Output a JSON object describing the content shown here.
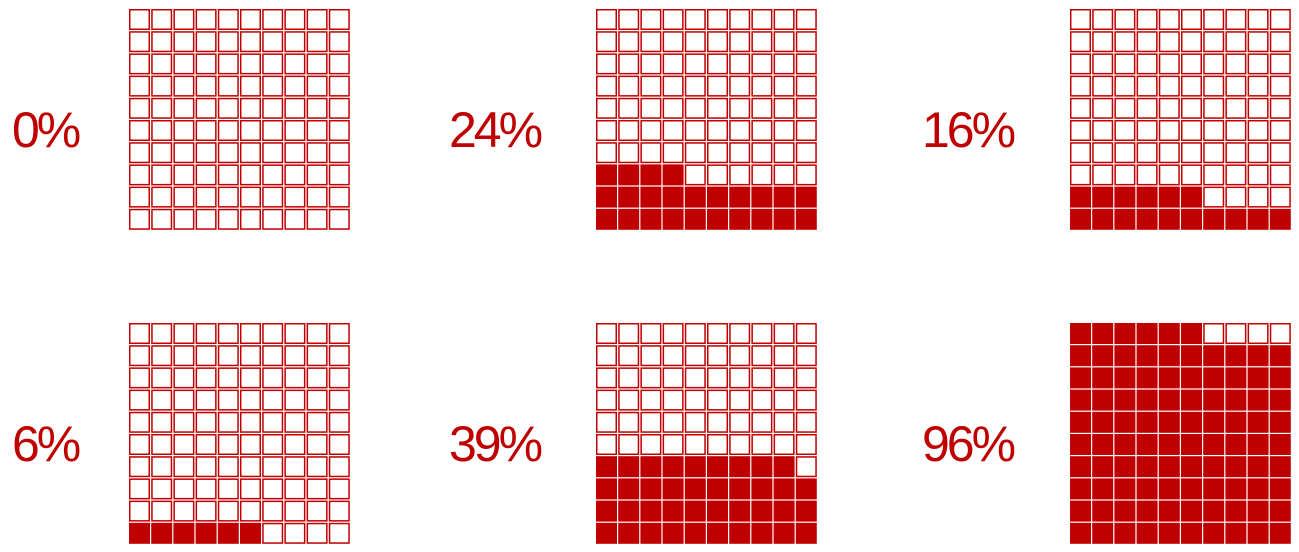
{
  "colors": {
    "accent": "#c00000",
    "background": "#ffffff"
  },
  "chart_data": [
    {
      "type": "waffle",
      "label": "0%",
      "value": 0,
      "total": 100,
      "rows": 10,
      "cols": 10
    },
    {
      "type": "waffle",
      "label": "24%",
      "value": 24,
      "total": 100,
      "rows": 10,
      "cols": 10
    },
    {
      "type": "waffle",
      "label": "16%",
      "value": 16,
      "total": 100,
      "rows": 10,
      "cols": 10
    },
    {
      "type": "waffle",
      "label": "6%",
      "value": 6,
      "total": 100,
      "rows": 10,
      "cols": 10
    },
    {
      "type": "waffle",
      "label": "39%",
      "value": 39,
      "total": 100,
      "rows": 10,
      "cols": 10
    },
    {
      "type": "waffle",
      "label": "96%",
      "value": 96,
      "total": 100,
      "rows": 10,
      "cols": 10
    }
  ]
}
